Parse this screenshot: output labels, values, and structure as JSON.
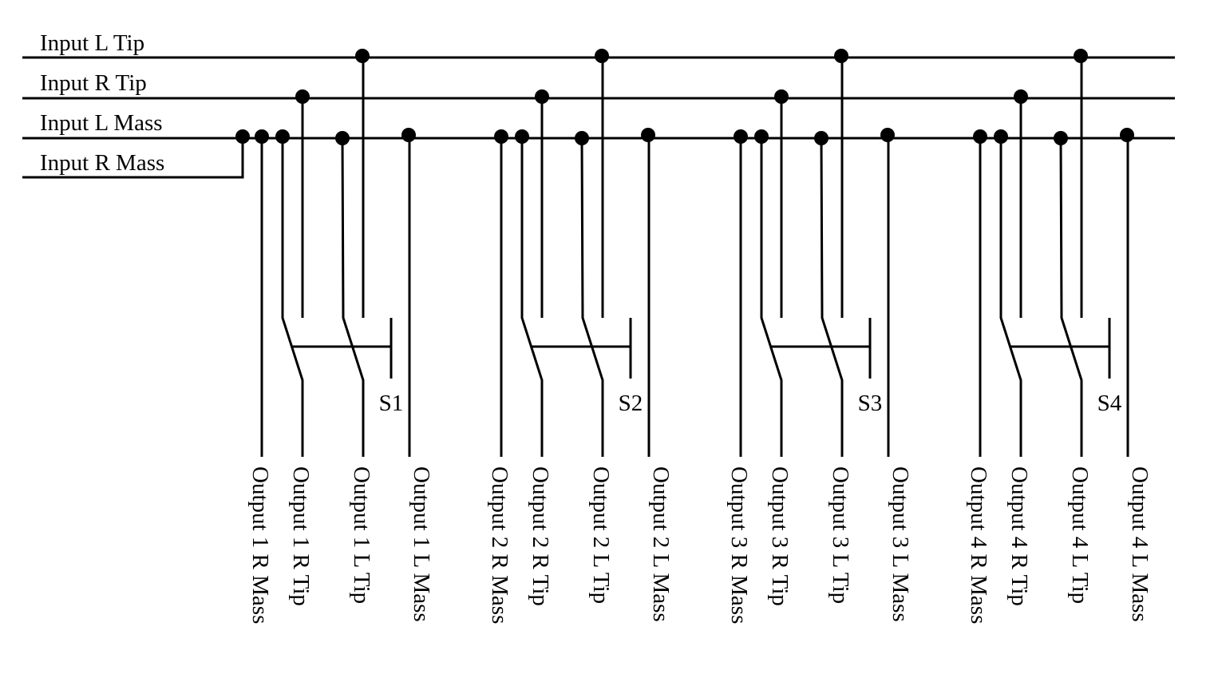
{
  "inputs": {
    "l_tip": "Input L Tip",
    "r_tip": "Input R Tip",
    "l_mass": "Input L Mass",
    "r_mass": "Input R Mass"
  },
  "channels": [
    {
      "switch": "S1",
      "outputs": [
        "Output 1 R Mass",
        "Output 1 R Tip",
        "Output 1 L Tip",
        "Output 1 L Mass"
      ]
    },
    {
      "switch": "S2",
      "outputs": [
        "Output 2 R Mass",
        "Output 2 R Tip",
        "Output 2 L Tip",
        "Output 2 L Mass"
      ]
    },
    {
      "switch": "S3",
      "outputs": [
        "Output 3 R Mass",
        "Output 3 R Tip",
        "Output 3 L Tip",
        "Output 3 L Mass"
      ]
    },
    {
      "switch": "S4",
      "outputs": [
        "Output 4 R Mass",
        "Output 4 R Tip",
        "Output 4 L Tip",
        "Output 4 L Mass"
      ]
    }
  ]
}
